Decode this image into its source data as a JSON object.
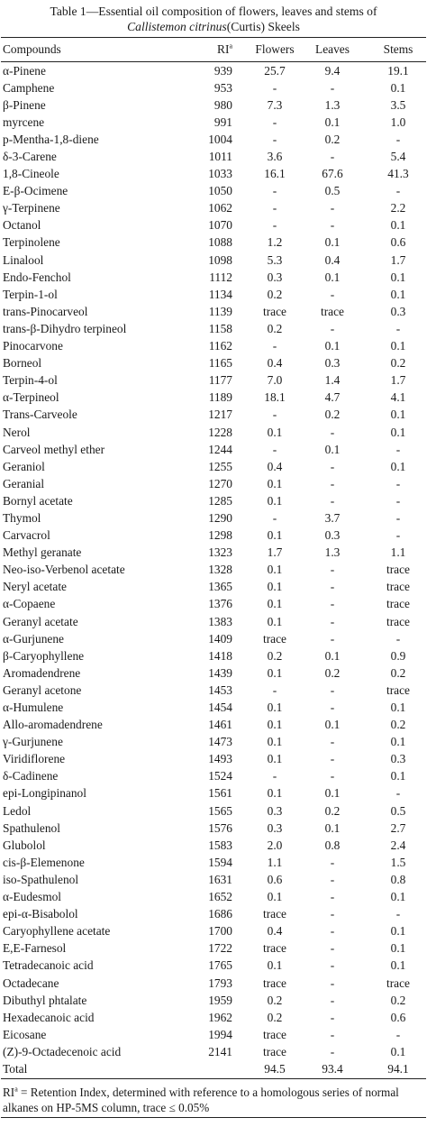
{
  "caption": {
    "line1": "Table 1—Essential oil composition of flowers, leaves and stems of",
    "line2_italic": "Callistemon citrinus",
    "line2_rest": "(Curtis) Skeels"
  },
  "headers": {
    "compounds": "Compounds",
    "ri": "RI",
    "ri_sup": "a",
    "flowers": "Flowers",
    "leaves": "Leaves",
    "stems": "Stems"
  },
  "rows": [
    [
      "α-Pinene",
      "939",
      "25.7",
      "9.4",
      "19.1"
    ],
    [
      "Camphene",
      "953",
      "-",
      "-",
      "0.1"
    ],
    [
      "β-Pinene",
      "980",
      "7.3",
      "1.3",
      "3.5"
    ],
    [
      "myrcene",
      "991",
      "-",
      "0.1",
      "1.0"
    ],
    [
      "p-Mentha-1,8-diene",
      "1004",
      "-",
      "0.2",
      "-"
    ],
    [
      "δ-3-Carene",
      "1011",
      "3.6",
      "-",
      "5.4"
    ],
    [
      "1,8-Cineole",
      "1033",
      "16.1",
      "67.6",
      "41.3"
    ],
    [
      "E-β-Ocimene",
      "1050",
      "-",
      "0.5",
      "-"
    ],
    [
      "γ-Terpinene",
      "1062",
      "-",
      "-",
      "2.2"
    ],
    [
      "Octanol",
      "1070",
      "-",
      "-",
      "0.1"
    ],
    [
      "Terpinolene",
      "1088",
      "1.2",
      "0.1",
      "0.6"
    ],
    [
      "Linalool",
      "1098",
      "5.3",
      "0.4",
      "1.7"
    ],
    [
      "Endo-Fenchol",
      "1112",
      "0.3",
      "0.1",
      "0.1"
    ],
    [
      "Terpin-1-ol",
      "1134",
      "0.2",
      "-",
      "0.1"
    ],
    [
      "trans-Pinocarveol",
      "1139",
      "trace",
      "trace",
      "0.3"
    ],
    [
      "trans-β-Dihydro terpineol",
      "1158",
      "0.2",
      "-",
      "-"
    ],
    [
      "Pinocarvone",
      "1162",
      "-",
      "0.1",
      "0.1"
    ],
    [
      "Borneol",
      "1165",
      "0.4",
      "0.3",
      "0.2"
    ],
    [
      "Terpin-4-ol",
      "1177",
      "7.0",
      "1.4",
      "1.7"
    ],
    [
      "α-Terpineol",
      "1189",
      "18.1",
      "4.7",
      "4.1"
    ],
    [
      "Trans-Carveole",
      "1217",
      "-",
      "0.2",
      "0.1"
    ],
    [
      "Nerol",
      "1228",
      "0.1",
      "-",
      "0.1"
    ],
    [
      "Carveol methyl ether",
      "1244",
      "-",
      "0.1",
      "-"
    ],
    [
      "Geraniol",
      "1255",
      "0.4",
      "-",
      "0.1"
    ],
    [
      "Geranial",
      "1270",
      "0.1",
      "-",
      "-"
    ],
    [
      "Bornyl acetate",
      "1285",
      "0.1",
      "-",
      "-"
    ],
    [
      "Thymol",
      "1290",
      "-",
      "3.7",
      "-"
    ],
    [
      "Carvacrol",
      "1298",
      "0.1",
      "0.3",
      "-"
    ],
    [
      "Methyl geranate",
      "1323",
      "1.7",
      "1.3",
      "1.1"
    ],
    [
      "Neo-iso-Verbenol acetate",
      "1328",
      "0.1",
      "-",
      "trace"
    ],
    [
      "Neryl acetate",
      "1365",
      "0.1",
      "-",
      "trace"
    ],
    [
      "α-Copaene",
      "1376",
      "0.1",
      "-",
      "trace"
    ],
    [
      "Geranyl acetate",
      "1383",
      "0.1",
      "-",
      "trace"
    ],
    [
      "α-Gurjunene",
      "1409",
      "trace",
      "-",
      "-"
    ],
    [
      "β-Caryophyllene",
      "1418",
      "0.2",
      "0.1",
      "0.9"
    ],
    [
      "Aromadendrene",
      "1439",
      "0.1",
      "0.2",
      "0.2"
    ],
    [
      "Geranyl acetone",
      "1453",
      "-",
      "-",
      "trace"
    ],
    [
      "α-Humulene",
      "1454",
      "0.1",
      "-",
      "0.1"
    ],
    [
      "Allo-aromadendrene",
      "1461",
      "0.1",
      "0.1",
      "0.2"
    ],
    [
      "γ-Gurjunene",
      "1473",
      "0.1",
      "-",
      "0.1"
    ],
    [
      "Viridiflorene",
      "1493",
      "0.1",
      "-",
      "0.3"
    ],
    [
      "δ-Cadinene",
      "1524",
      "-",
      "-",
      "0.1"
    ],
    [
      "epi-Longipinanol",
      "1561",
      "0.1",
      "0.1",
      "-"
    ],
    [
      "Ledol",
      "1565",
      "0.3",
      "0.2",
      "0.5"
    ],
    [
      "Spathulenol",
      "1576",
      "0.3",
      "0.1",
      "2.7"
    ],
    [
      "Glubolol",
      "1583",
      "2.0",
      "0.8",
      "2.4"
    ],
    [
      "cis-β-Elemenone",
      "1594",
      "1.1",
      "-",
      "1.5"
    ],
    [
      "iso-Spathulenol",
      "1631",
      "0.6",
      "-",
      "0.8"
    ],
    [
      "α-Eudesmol",
      "1652",
      "0.1",
      "-",
      "0.1"
    ],
    [
      "epi-α-Bisabolol",
      "1686",
      "trace",
      "-",
      "-"
    ],
    [
      "Caryophyllene acetate",
      "1700",
      "0.4",
      "-",
      "0.1"
    ],
    [
      "E,E-Farnesol",
      "1722",
      "trace",
      "-",
      "0.1"
    ],
    [
      "Tetradecanoic acid",
      "1765",
      "0.1",
      "-",
      "0.1"
    ],
    [
      "Octadecane",
      "1793",
      "trace",
      "-",
      "trace"
    ],
    [
      "Dibuthyl phtalate",
      "1959",
      "0.2",
      "-",
      "0.2"
    ],
    [
      "Hexadecanoic acid",
      "1962",
      "0.2",
      "-",
      "0.6"
    ],
    [
      "Eicosane",
      "1994",
      "trace",
      "-",
      "-"
    ],
    [
      "(Z)-9-Octadecenoic acid",
      "2141",
      "trace",
      "-",
      "0.1"
    ]
  ],
  "total": {
    "label": "Total",
    "flowers": "94.5",
    "leaves": "93.4",
    "stems": "94.1"
  },
  "footnote": {
    "ri": "RI",
    "sup": "a",
    "text": " = Retention Index, determined with reference to a homologous series of normal alkanes on HP-5MS column, trace ≤ 0.05%"
  }
}
